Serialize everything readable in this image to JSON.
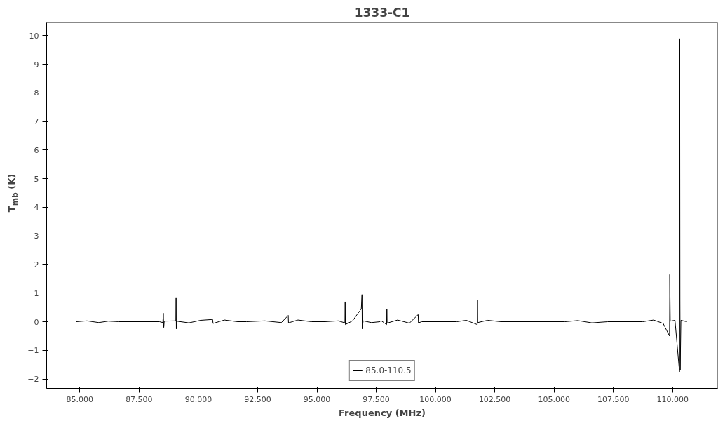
{
  "chart_data": {
    "type": "line",
    "title": "1333-C1",
    "xlabel": "Frequency (MHz)",
    "ylabel": "T$_{mb}$ (K)",
    "xlim": [
      83.6,
      111.9
    ],
    "ylim": [
      -2.33,
      10.45
    ],
    "xticks": [
      {
        "value": 85,
        "label": "85.000"
      },
      {
        "value": 87.5,
        "label": "87.500"
      },
      {
        "value": 90,
        "label": "90.000"
      },
      {
        "value": 92.5,
        "label": "92.500"
      },
      {
        "value": 95,
        "label": "95.000"
      },
      {
        "value": 97.5,
        "label": "97.500"
      },
      {
        "value": 100,
        "label": "100.000"
      },
      {
        "value": 102.5,
        "label": "102.500"
      },
      {
        "value": 105,
        "label": "105.000"
      },
      {
        "value": 107.5,
        "label": "107.500"
      },
      {
        "value": 110,
        "label": "110.000"
      }
    ],
    "yticks": [
      -2,
      -1,
      0,
      1,
      2,
      3,
      4,
      5,
      6,
      7,
      8,
      9,
      10
    ],
    "grid": false,
    "legend": "bottom",
    "marker": "none",
    "line_style": "solid",
    "series": [
      {
        "name": "85.0-110.5",
        "color": "#000000",
        "x": [
          84.85,
          85.3,
          85.8,
          86.2,
          86.65,
          88.36,
          88.5,
          88.52,
          88.54,
          88.56,
          89.05,
          89.06,
          89.07,
          89.08,
          89.6,
          90.1,
          90.6,
          90.62,
          91.1,
          91.66,
          92.03,
          92.8,
          93.5,
          93.79,
          93.8,
          94.2,
          94.77,
          95.34,
          95.9,
          96.18,
          96.19,
          96.2,
          96.5,
          96.87,
          96.9,
          96.91,
          96.95,
          97.3,
          97.66,
          97.7,
          97.94,
          97.95,
          97.96,
          98.4,
          98.9,
          99.27,
          99.28,
          99.42,
          100.9,
          101.3,
          101.76,
          101.77,
          101.78,
          102.2,
          102.76,
          105.46,
          106.0,
          106.6,
          107.26,
          108.74,
          109.2,
          109.6,
          109.87,
          109.88,
          109.9,
          110.1,
          110.29,
          110.3,
          110.31,
          110.32,
          110.35,
          110.6
        ],
        "values": [
          0,
          0.03,
          -0.03,
          0.02,
          0,
          0,
          -0.03,
          0.3,
          -0.2,
          0.02,
          0.03,
          0.85,
          -0.25,
          0.02,
          -0.04,
          0.05,
          0.08,
          -0.06,
          0.06,
          0,
          0,
          0.03,
          -0.03,
          0.22,
          -0.04,
          0.06,
          0,
          0,
          0.03,
          -0.04,
          0.7,
          -0.1,
          0.03,
          0.45,
          0.95,
          -0.25,
          0.03,
          -0.03,
          0,
          0.04,
          -0.1,
          0.45,
          -0.05,
          0.06,
          -0.05,
          0.25,
          -0.04,
          0,
          0,
          0.05,
          -0.1,
          0.75,
          -0.03,
          0.05,
          0,
          0,
          0.04,
          -0.04,
          0,
          0,
          0.06,
          -0.06,
          -0.5,
          1.65,
          0.02,
          0.05,
          -1.75,
          9.9,
          0.75,
          -1.7,
          0.05,
          0
        ]
      }
    ]
  }
}
